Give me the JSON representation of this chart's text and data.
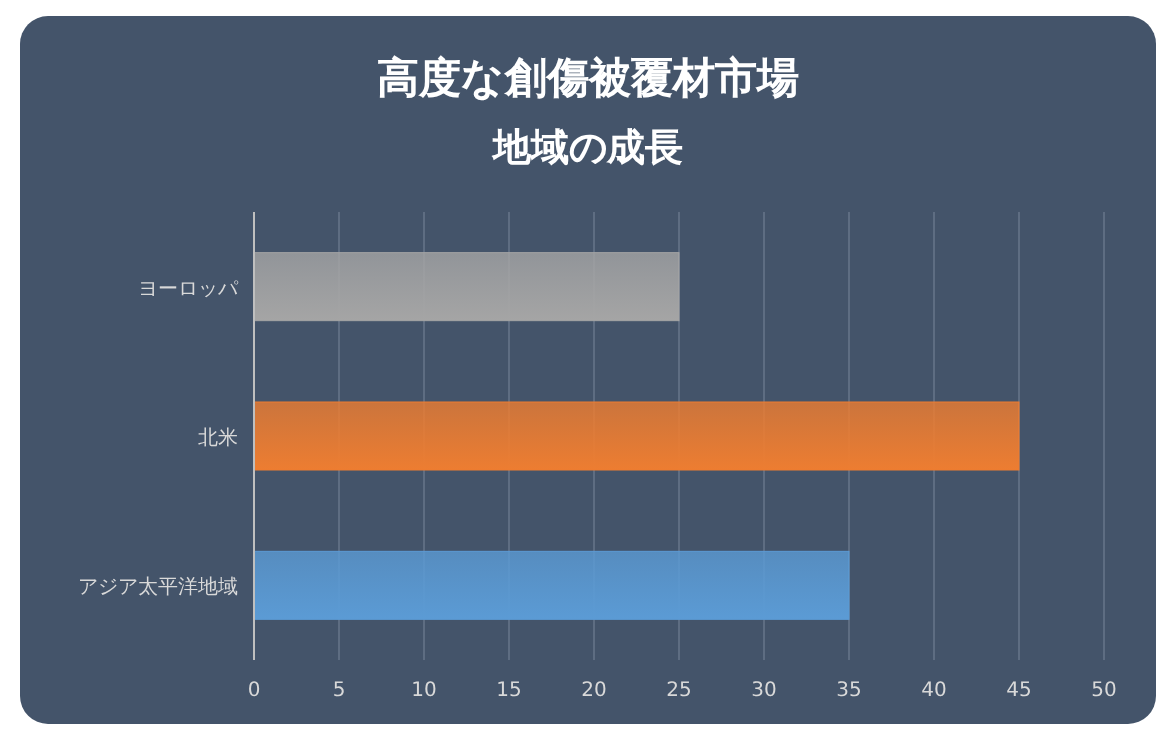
{
  "chart_data": {
    "type": "bar",
    "orientation": "horizontal",
    "title": "高度な創傷被覆材市場",
    "subtitle": "地域の成長",
    "categories": [
      "ヨーロッパ",
      "北米",
      "アジア太平洋地域"
    ],
    "values": [
      25,
      45,
      35
    ],
    "colors": [
      "#a5a5a5",
      "#ed7d31",
      "#5b9bd5"
    ],
    "xlim": [
      0,
      50
    ],
    "xticks": [
      0,
      5,
      10,
      15,
      20,
      25,
      30,
      35,
      40,
      45,
      50
    ],
    "grid": "x"
  }
}
